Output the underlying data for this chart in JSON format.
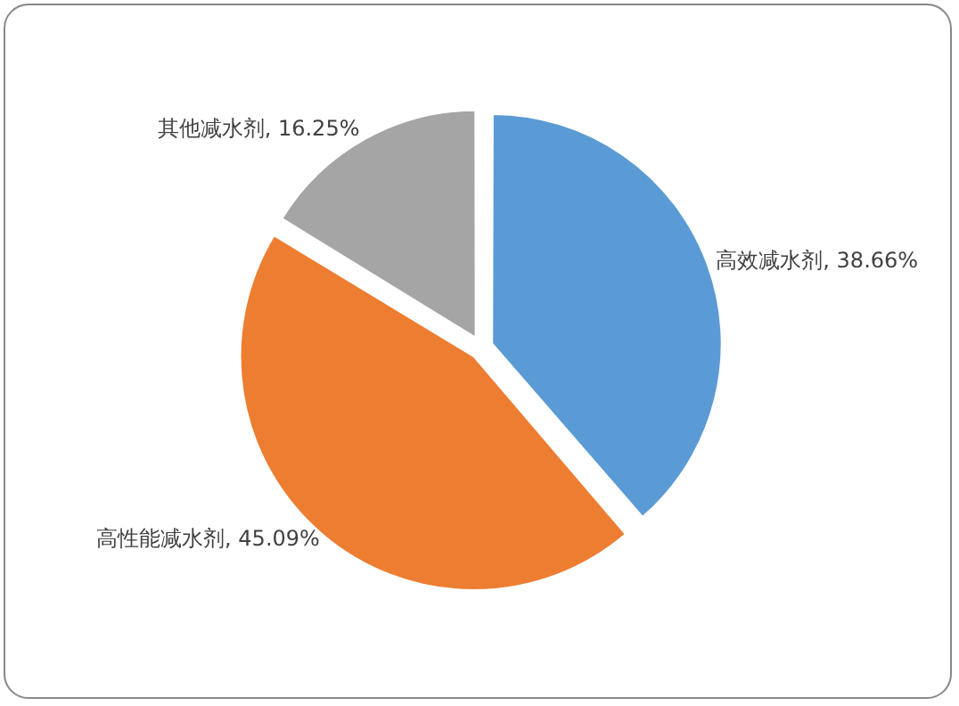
{
  "chart_data": {
    "type": "pie",
    "categories": [
      "高效减水剂",
      "高性能减水剂",
      "其他减水剂"
    ],
    "values": [
      38.66,
      45.09,
      16.25
    ],
    "colors": [
      "#5b9bd5",
      "#ed7d31",
      "#a5a5a5"
    ],
    "value_labels": [
      "38.66%",
      "45.09%",
      "16.25%"
    ],
    "legend": false
  }
}
